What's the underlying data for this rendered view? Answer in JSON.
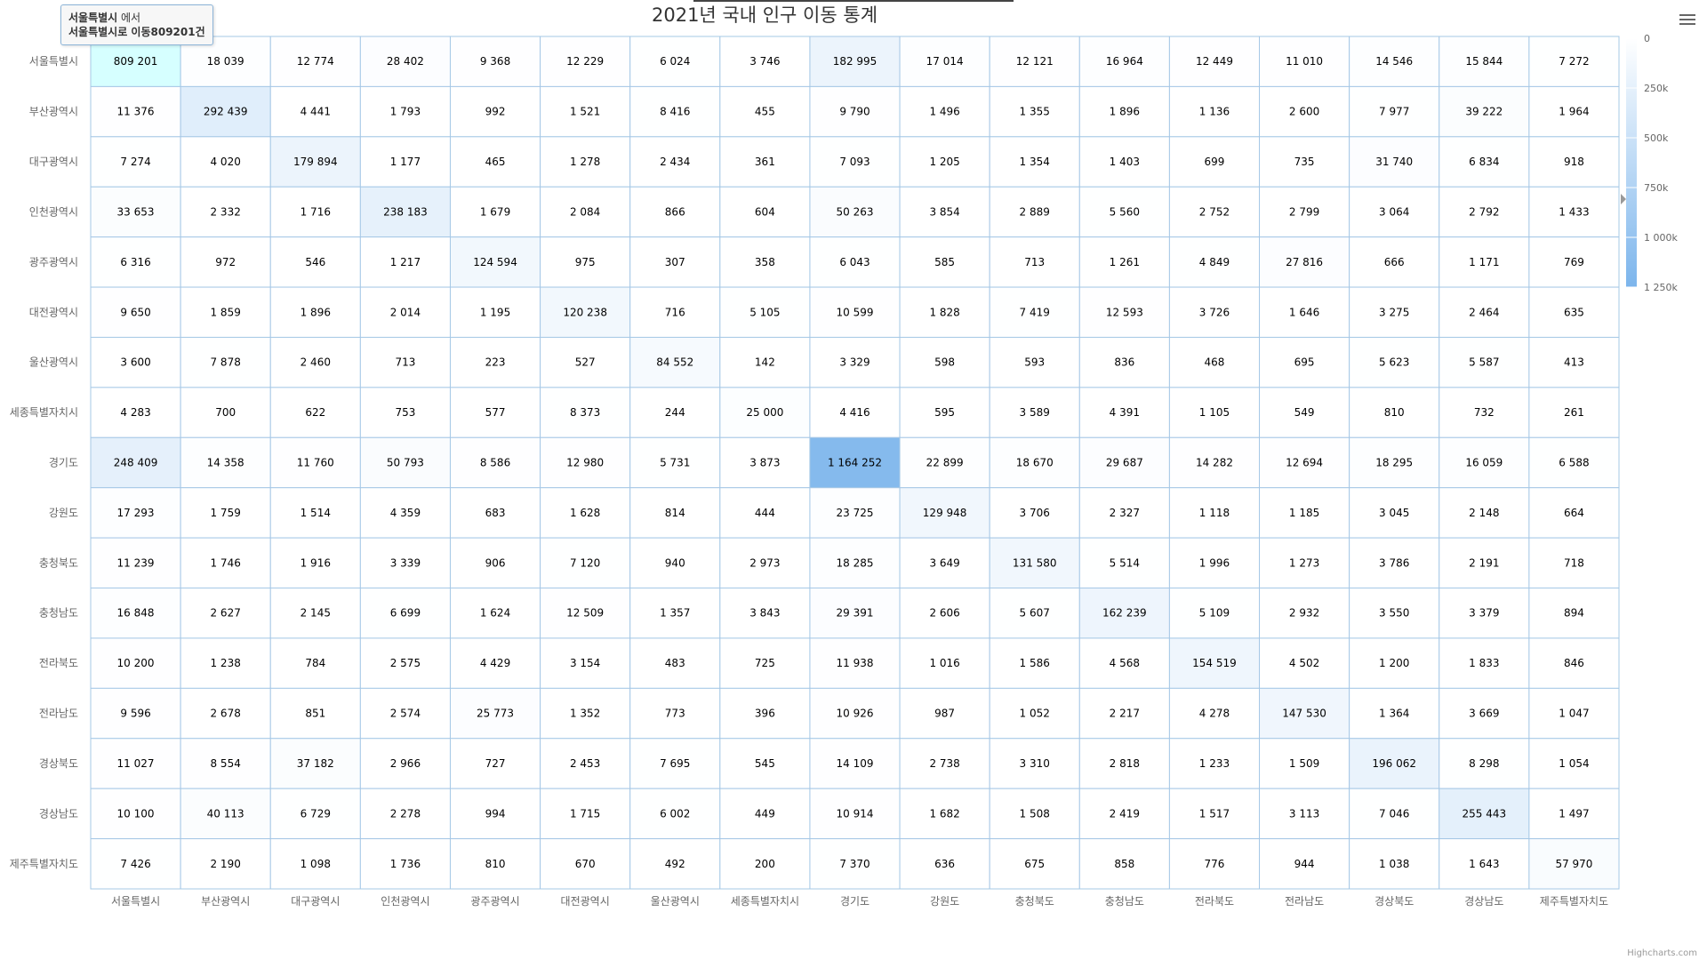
{
  "chart_data": {
    "type": "heatmap",
    "title": "2021년 국내 인구 이동 통계",
    "categories": [
      "서울특별시",
      "부산광역시",
      "대구광역시",
      "인천광역시",
      "광주광역시",
      "대전광역시",
      "울산광역시",
      "세종특별자치시",
      "경기도",
      "강원도",
      "충청북도",
      "충청남도",
      "전라북도",
      "전라남도",
      "경상북도",
      "경상남도",
      "제주특별자치도"
    ],
    "values": [
      [
        809201,
        18039,
        12774,
        28402,
        9368,
        12229,
        6024,
        3746,
        182995,
        17014,
        12121,
        16964,
        12449,
        11010,
        14546,
        15844,
        7272
      ],
      [
        11376,
        292439,
        4441,
        1793,
        992,
        1521,
        8416,
        455,
        9790,
        1496,
        1355,
        1896,
        1136,
        2600,
        7977,
        39222,
        1964
      ],
      [
        7274,
        4020,
        179894,
        1177,
        465,
        1278,
        2434,
        361,
        7093,
        1205,
        1354,
        1403,
        699,
        735,
        31740,
        6834,
        918
      ],
      [
        33653,
        2332,
        1716,
        238183,
        1679,
        2084,
        866,
        604,
        50263,
        3854,
        2889,
        5560,
        2752,
        2799,
        3064,
        2792,
        1433
      ],
      [
        6316,
        972,
        546,
        1217,
        124594,
        975,
        307,
        358,
        6043,
        585,
        713,
        1261,
        4849,
        27816,
        666,
        1171,
        769
      ],
      [
        9650,
        1859,
        1896,
        2014,
        1195,
        120238,
        716,
        5105,
        10599,
        1828,
        7419,
        12593,
        3726,
        1646,
        3275,
        2464,
        635
      ],
      [
        3600,
        7878,
        2460,
        713,
        223,
        527,
        84552,
        142,
        3329,
        598,
        593,
        836,
        468,
        695,
        5623,
        5587,
        413
      ],
      [
        4283,
        700,
        622,
        753,
        577,
        8373,
        244,
        25000,
        4416,
        595,
        3589,
        4391,
        1105,
        549,
        810,
        732,
        261
      ],
      [
        248409,
        14358,
        11760,
        50793,
        8586,
        12980,
        5731,
        3873,
        1164252,
        22899,
        18670,
        29687,
        14282,
        12694,
        18295,
        16059,
        6588
      ],
      [
        17293,
        1759,
        1514,
        4359,
        683,
        1628,
        814,
        444,
        23725,
        129948,
        3706,
        2327,
        1118,
        1185,
        3045,
        2148,
        664
      ],
      [
        11239,
        1746,
        1916,
        3339,
        906,
        7120,
        940,
        2973,
        18285,
        3649,
        131580,
        5514,
        1996,
        1273,
        3786,
        2191,
        718
      ],
      [
        16848,
        2627,
        2145,
        6699,
        1624,
        12509,
        1357,
        3843,
        29391,
        2606,
        5607,
        162239,
        5109,
        2932,
        3550,
        3379,
        894
      ],
      [
        10200,
        1238,
        784,
        2575,
        4429,
        3154,
        483,
        725,
        11938,
        1016,
        1586,
        4568,
        154519,
        4502,
        1200,
        1833,
        846
      ],
      [
        9596,
        2678,
        851,
        2574,
        25773,
        1352,
        773,
        396,
        10926,
        987,
        1052,
        2217,
        4278,
        147530,
        1364,
        3669,
        1047
      ],
      [
        11027,
        8554,
        37182,
        2966,
        727,
        2453,
        7695,
        545,
        14109,
        2738,
        3310,
        2818,
        1233,
        1509,
        196062,
        8298,
        1054
      ],
      [
        10100,
        40113,
        6729,
        2278,
        994,
        1715,
        6002,
        449,
        10914,
        1682,
        1508,
        2419,
        1517,
        3113,
        7046,
        255443,
        1497
      ],
      [
        7426,
        2190,
        1098,
        1736,
        810,
        670,
        492,
        200,
        7370,
        636,
        675,
        858,
        776,
        944,
        1038,
        1643,
        57970
      ]
    ],
    "color_axis": {
      "min": 0,
      "max": 1250000,
      "min_color": "#ffffff",
      "max_color": "#7cb5ec",
      "tick_labels": [
        "0",
        "250k",
        "500k",
        "750k",
        "1 000k",
        "1 250k"
      ]
    },
    "legend_placement": "right",
    "grid": true
  },
  "tooltip": {
    "line1_region": "서울특별시",
    "line1_suffix": " 에서",
    "line2": "서울특별시로 이동809201건"
  },
  "credits": "Highcharts.com",
  "menu_icon": "hamburger-menu-icon",
  "colors": {
    "grid": "#a6c8e6",
    "accent": "#7cb5ec",
    "hover": "#d6ffff"
  }
}
